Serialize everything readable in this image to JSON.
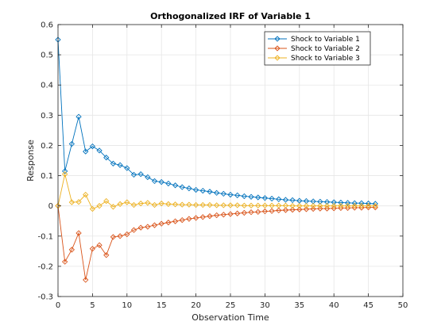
{
  "chart_data": {
    "type": "line",
    "title": "Orthogonalized IRF of Variable 1",
    "xlabel": "Observation Time",
    "ylabel": "Response",
    "xlim": [
      0,
      50
    ],
    "ylim": [
      -0.3,
      0.6
    ],
    "xticks": [
      "0",
      "5",
      "10",
      "15",
      "20",
      "25",
      "30",
      "35",
      "40",
      "45",
      "50"
    ],
    "yticks": [
      "-0.3",
      "-0.2",
      "-0.1",
      "0",
      "0.1",
      "0.2",
      "0.3",
      "0.4",
      "0.5",
      "0.6"
    ],
    "grid": true,
    "legend_position": "top-right",
    "marker": "diamond",
    "x": [
      0,
      1,
      2,
      3,
      4,
      5,
      6,
      7,
      8,
      9,
      10,
      11,
      12,
      13,
      14,
      15,
      16,
      17,
      18,
      19,
      20,
      21,
      22,
      23,
      24,
      25,
      26,
      27,
      28,
      29,
      30,
      31,
      32,
      33,
      34,
      35,
      36,
      37,
      38,
      39,
      40,
      41,
      42,
      43,
      44,
      45,
      46
    ],
    "series": [
      {
        "name": "Shock to Variable 1",
        "color": "#0072BD",
        "values": [
          0.55,
          0.115,
          0.205,
          0.295,
          0.18,
          0.197,
          0.183,
          0.16,
          0.14,
          0.135,
          0.125,
          0.103,
          0.105,
          0.095,
          0.082,
          0.079,
          0.074,
          0.068,
          0.062,
          0.058,
          0.053,
          0.05,
          0.047,
          0.043,
          0.04,
          0.037,
          0.035,
          0.032,
          0.03,
          0.028,
          0.026,
          0.024,
          0.022,
          0.02,
          0.019,
          0.017,
          0.016,
          0.015,
          0.014,
          0.013,
          0.012,
          0.011,
          0.01,
          0.009,
          0.009,
          0.008,
          0.007
        ]
      },
      {
        "name": "Shock to Variable 2",
        "color": "#D95319",
        "values": [
          0.0,
          -0.185,
          -0.145,
          -0.09,
          -0.245,
          -0.142,
          -0.13,
          -0.163,
          -0.103,
          -0.1,
          -0.094,
          -0.08,
          -0.072,
          -0.069,
          -0.064,
          -0.059,
          -0.055,
          -0.051,
          -0.047,
          -0.043,
          -0.04,
          -0.037,
          -0.034,
          -0.031,
          -0.029,
          -0.027,
          -0.025,
          -0.023,
          -0.021,
          -0.02,
          -0.018,
          -0.017,
          -0.015,
          -0.014,
          -0.013,
          -0.012,
          -0.011,
          -0.01,
          -0.009,
          -0.009,
          -0.008,
          -0.007,
          -0.007,
          -0.006,
          -0.006,
          -0.005,
          -0.005
        ]
      },
      {
        "name": "Shock to Variable 3",
        "color": "#EDB120",
        "values": [
          0.0,
          0.105,
          0.012,
          0.013,
          0.037,
          -0.01,
          0.0,
          0.016,
          -0.003,
          0.006,
          0.012,
          0.003,
          0.008,
          0.01,
          0.003,
          0.008,
          0.006,
          0.005,
          0.004,
          0.004,
          0.003,
          0.003,
          0.003,
          0.002,
          0.002,
          0.002,
          0.002,
          0.001,
          0.001,
          0.001,
          0.001,
          0.001,
          0.001,
          0.001,
          0.0,
          0.0,
          0.0,
          0.0,
          0.0,
          0.0,
          0.0,
          0.0,
          0.0,
          0.0,
          0.0,
          0.0,
          0.0
        ]
      }
    ]
  }
}
